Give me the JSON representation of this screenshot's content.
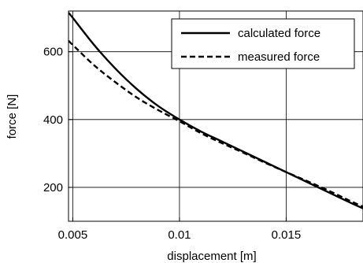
{
  "chart_data": {
    "type": "line",
    "xlabel": "displacement [m]",
    "ylabel": "force [N]",
    "xlim": [
      0.0048,
      0.0186
    ],
    "ylim": [
      100,
      720
    ],
    "xticks": [
      {
        "value": 0.005,
        "label": "0.005"
      },
      {
        "value": 0.01,
        "label": "0.01"
      },
      {
        "value": 0.015,
        "label": "0.015"
      }
    ],
    "yticks": [
      {
        "value": 200,
        "label": "200"
      },
      {
        "value": 400,
        "label": "400"
      },
      {
        "value": 600,
        "label": "600"
      }
    ],
    "grid": true,
    "legend_position": "top-right",
    "series": [
      {
        "name": "calculated force",
        "style": "solid",
        "color": "#000000",
        "x": [
          0.0048,
          0.005,
          0.006,
          0.007,
          0.008,
          0.009,
          0.01,
          0.011,
          0.012,
          0.013,
          0.014,
          0.015,
          0.016,
          0.017,
          0.018,
          0.0186
        ],
        "y": [
          715,
          700,
          620,
          550,
          490,
          440,
          400,
          365,
          335,
          305,
          275,
          245,
          215,
          185,
          155,
          138
        ]
      },
      {
        "name": "measured force",
        "style": "dashed",
        "color": "#000000",
        "x": [
          0.0048,
          0.005,
          0.006,
          0.007,
          0.008,
          0.009,
          0.01,
          0.011,
          0.012,
          0.013,
          0.014,
          0.015,
          0.016,
          0.017,
          0.018,
          0.0186
        ],
        "y": [
          632,
          620,
          560,
          510,
          465,
          428,
          395,
          360,
          330,
          302,
          273,
          245,
          218,
          190,
          160,
          143
        ]
      }
    ]
  }
}
